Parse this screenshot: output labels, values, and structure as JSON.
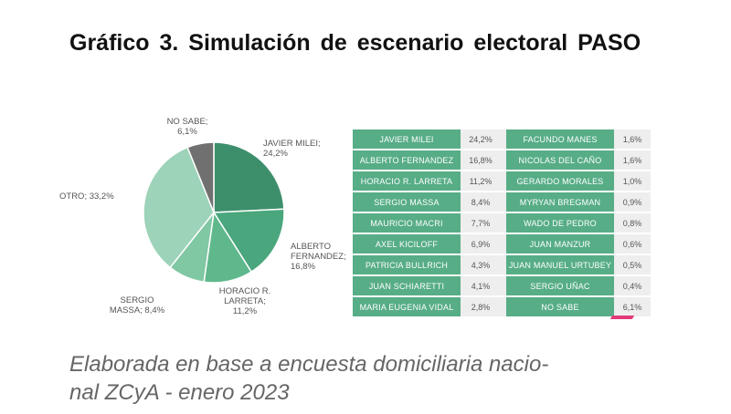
{
  "title": "Gráfico 3. Simulación de escenario electoral PASO",
  "note_line1": "Elaborada en base a encuesta domiciliaria nacio-",
  "note_line2": "nal ZCyA - enero 2023",
  "colors": {
    "header_green": "#57ad86",
    "pct_bg": "#eeeeee",
    "pink_mark": "#e23a7a"
  },
  "chart_data": [
    {
      "type": "pie",
      "slices": [
        {
          "label": [
            "JAVIER MILEI;",
            "24,2%"
          ],
          "value": 24.2,
          "color": "#3d8f6b"
        },
        {
          "label": [
            "ALBERTO",
            "FERNANDEZ;",
            "16,8%"
          ],
          "value": 16.8,
          "color": "#4aa67c"
        },
        {
          "label": [
            "HORACIO R.",
            "LARRETA;",
            "11,2%"
          ],
          "value": 11.2,
          "color": "#5fb88c"
        },
        {
          "label": [
            "SERGIO",
            "MASSA; 8,4%"
          ],
          "value": 8.4,
          "color": "#80c7a3"
        },
        {
          "label": [
            "OTRO; 33,2%"
          ],
          "value": 33.2,
          "color": "#9dd3b8"
        },
        {
          "label": [
            "NO SABE;",
            "6,1%"
          ],
          "value": 6.1,
          "color": "#707070"
        }
      ]
    },
    {
      "type": "table",
      "rows": [
        [
          "JAVIER MILEI",
          "24,2%",
          "FACUNDO MANES",
          "1,6%"
        ],
        [
          "ALBERTO FERNANDEZ",
          "16,8%",
          "NICOLAS DEL CAÑO",
          "1,6%"
        ],
        [
          "HORACIO R. LARRETA",
          "11,2%",
          "GERARDO MORALES",
          "1,0%"
        ],
        [
          "SERGIO MASSA",
          "8,4%",
          "MYRYAN BREGMAN",
          "0,9%"
        ],
        [
          "MAURICIO MACRI",
          "7,7%",
          "WADO DE PEDRO",
          "0,8%"
        ],
        [
          "AXEL KICILOFF",
          "6,9%",
          "JUAN MANZUR",
          "0,6%"
        ],
        [
          "PATRICIA BULLRICH",
          "4,3%",
          "JUAN MANUEL URTUBEY",
          "0,5%"
        ],
        [
          "JUAN SCHIARETTI",
          "4,1%",
          "SERGIO UÑAC",
          "0,4%"
        ],
        [
          "MARIA EUGENIA VIDAL",
          "2,8%",
          "NO SABE",
          "6,1%"
        ]
      ]
    }
  ]
}
